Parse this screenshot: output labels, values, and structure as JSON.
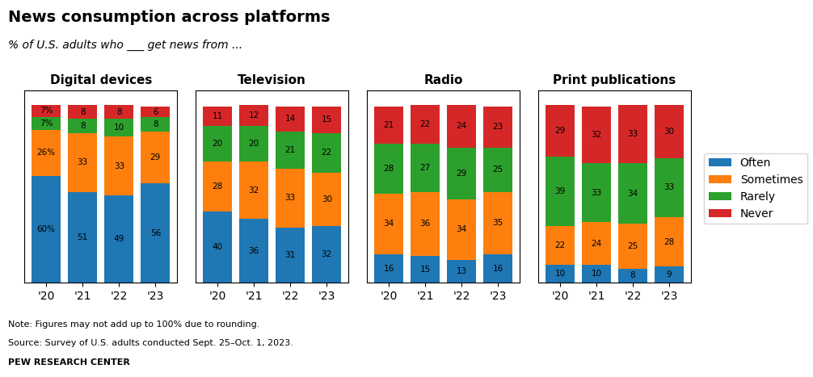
{
  "title": "News consumption across platforms",
  "subtitle": "% of U.S. adults who ___ get news from ...",
  "annotations": [
    "Note: Figures may not add up to 100% due to rounding.",
    "Source: Survey of U.S. adults conducted Sept. 25–Oct. 1, 2023.",
    "PEW RESEARCH CENTER"
  ],
  "chart_data": [
    {
      "type": "bar",
      "title": "Digital devices",
      "stacked": true,
      "data_labels": true,
      "tick_labels": "x",
      "legend": "center right",
      "categories": [
        "'20",
        "'21",
        "'22",
        "'23"
      ],
      "ylim": [
        0,
        108
      ],
      "series": [
        {
          "name": "Often",
          "values": [
            60,
            51,
            49,
            56
          ],
          "value_labels": [
            "60%",
            "51",
            "49",
            "56"
          ]
        },
        {
          "name": "Sometimes",
          "values": [
            26,
            33,
            33,
            29
          ],
          "value_labels": [
            "26%",
            "33",
            "33",
            "29"
          ]
        },
        {
          "name": "Rarely",
          "values": [
            7,
            8,
            10,
            8
          ],
          "value_labels": [
            "7%",
            "8",
            "10",
            "8"
          ]
        },
        {
          "name": "Never",
          "values": [
            7,
            8,
            8,
            6
          ],
          "value_labels": [
            "7%",
            "8",
            "8",
            "6"
          ]
        }
      ]
    },
    {
      "type": "bar",
      "title": "Television",
      "stacked": true,
      "data_labels": true,
      "tick_labels": "x",
      "categories": [
        "'20",
        "'21",
        "'22",
        "'23"
      ],
      "ylim": [
        0,
        108
      ],
      "series": [
        {
          "name": "Often",
          "values": [
            40,
            36,
            31,
            32
          ]
        },
        {
          "name": "Sometimes",
          "values": [
            28,
            32,
            33,
            30
          ]
        },
        {
          "name": "Rarely",
          "values": [
            20,
            20,
            21,
            22
          ]
        },
        {
          "name": "Never",
          "values": [
            11,
            12,
            14,
            15
          ]
        }
      ]
    },
    {
      "type": "bar",
      "title": "Radio",
      "stacked": true,
      "data_labels": true,
      "tick_labels": "x",
      "categories": [
        "'20",
        "'21",
        "'22",
        "'23"
      ],
      "ylim": [
        0,
        108
      ],
      "series": [
        {
          "name": "Often",
          "values": [
            16,
            15,
            13,
            16
          ]
        },
        {
          "name": "Sometimes",
          "values": [
            34,
            36,
            34,
            35
          ]
        },
        {
          "name": "Rarely",
          "values": [
            28,
            27,
            29,
            25
          ]
        },
        {
          "name": "Never",
          "values": [
            21,
            22,
            24,
            23
          ]
        }
      ]
    },
    {
      "type": "bar",
      "title": "Print publications",
      "stacked": true,
      "data_labels": true,
      "tick_labels": "x",
      "categories": [
        "'20",
        "'21",
        "'22",
        "'23"
      ],
      "ylim": [
        0,
        108
      ],
      "series": [
        {
          "name": "Often",
          "values": [
            10,
            10,
            8,
            9
          ]
        },
        {
          "name": "Sometimes",
          "values": [
            22,
            24,
            25,
            28
          ]
        },
        {
          "name": "Rarely",
          "values": [
            39,
            33,
            34,
            33
          ]
        },
        {
          "name": "Never",
          "values": [
            29,
            32,
            33,
            30
          ]
        }
      ]
    }
  ]
}
